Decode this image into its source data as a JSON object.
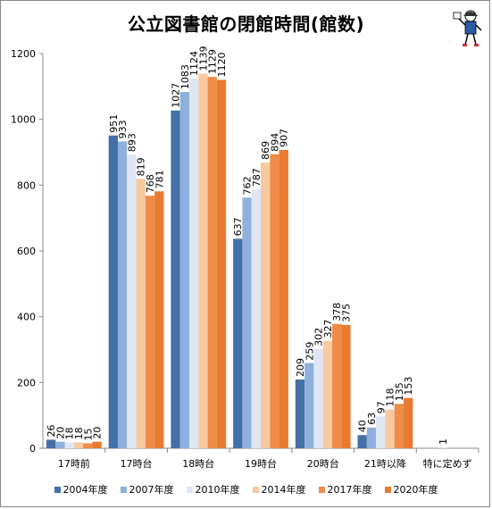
{
  "chart_data": {
    "type": "bar",
    "title": "公立図書館の閉館時間(館数)",
    "categories": [
      "17時前",
      "17時台",
      "18時台",
      "19時台",
      "20時台",
      "21時以降",
      "特に定めず"
    ],
    "series": [
      {
        "name": "2004年度",
        "color": "#4470a8",
        "values": [
          26,
          951,
          1027,
          637,
          209,
          40,
          null
        ]
      },
      {
        "name": "2007年度",
        "color": "#8fb0dc",
        "values": [
          20,
          933,
          1083,
          762,
          259,
          63,
          null
        ]
      },
      {
        "name": "2010年度",
        "color": "#dde6f2",
        "values": [
          18,
          893,
          1124,
          787,
          302,
          97,
          1
        ]
      },
      {
        "name": "2014年度",
        "color": "#f8c9a0",
        "values": [
          18,
          819,
          1139,
          869,
          327,
          118,
          null
        ]
      },
      {
        "name": "2017年度",
        "color": "#ee8c48",
        "values": [
          15,
          768,
          1129,
          894,
          378,
          135,
          null
        ]
      },
      {
        "name": "2020年度",
        "color": "#e87a32",
        "values": [
          20,
          781,
          1120,
          907,
          375,
          153,
          null
        ]
      }
    ],
    "ylim": [
      0,
      1200
    ],
    "yticks": [
      0,
      200,
      400,
      600,
      800,
      1000,
      1200
    ],
    "grid": false,
    "legend_position": "bottom"
  }
}
